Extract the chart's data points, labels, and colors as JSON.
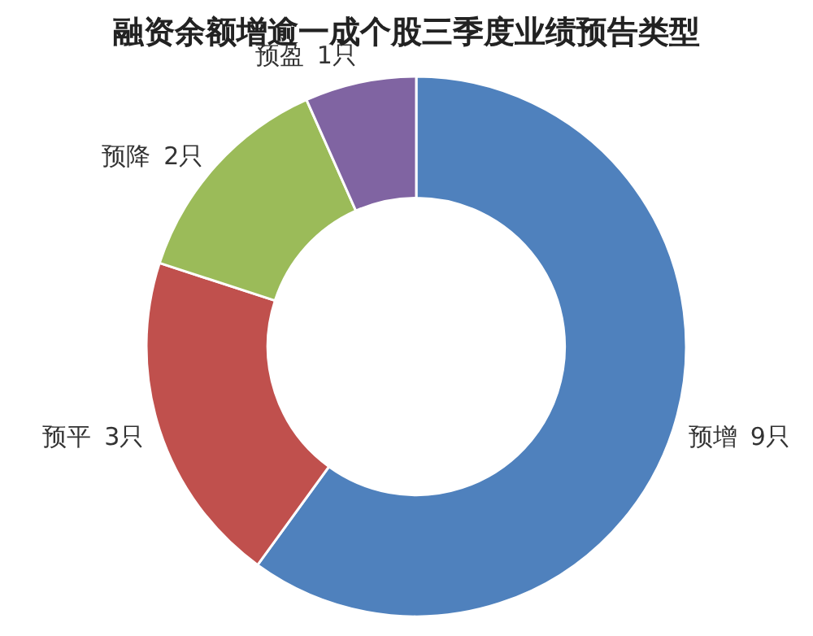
{
  "chart_data": {
    "type": "donut",
    "title": "融资余额增逾一成个股三季度业绩预告类型",
    "categories": [
      "预增",
      "预平",
      "预降",
      "预盈"
    ],
    "values": [
      9,
      3,
      2,
      1
    ],
    "value_labels": [
      "9只",
      "3只",
      "2只",
      "1只"
    ],
    "colors": [
      "#4f81bd",
      "#c0504d",
      "#9bbb59",
      "#8064a2"
    ],
    "legend": false
  }
}
